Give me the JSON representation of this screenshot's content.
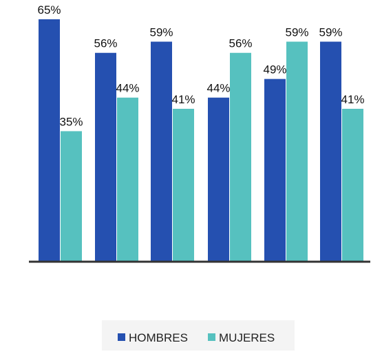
{
  "chart_data": {
    "type": "bar",
    "categories": [
      "",
      "",
      "",
      "",
      "",
      ""
    ],
    "series": [
      {
        "name": "HOMBRES",
        "color": "#2550b0",
        "values": [
          65,
          56,
          59,
          44,
          49,
          59
        ],
        "labels": [
          "65%",
          "56%",
          "59%",
          "44%",
          "49%",
          "59%"
        ]
      },
      {
        "name": "MUJERES",
        "color": "#56c1bf",
        "values": [
          35,
          44,
          41,
          56,
          59,
          41
        ],
        "labels": [
          "35%",
          "44%",
          "41%",
          "56%",
          "59%",
          "41%"
        ]
      }
    ],
    "ylim": [
      0,
      65
    ],
    "grid": false,
    "legend_position": "bottom"
  }
}
